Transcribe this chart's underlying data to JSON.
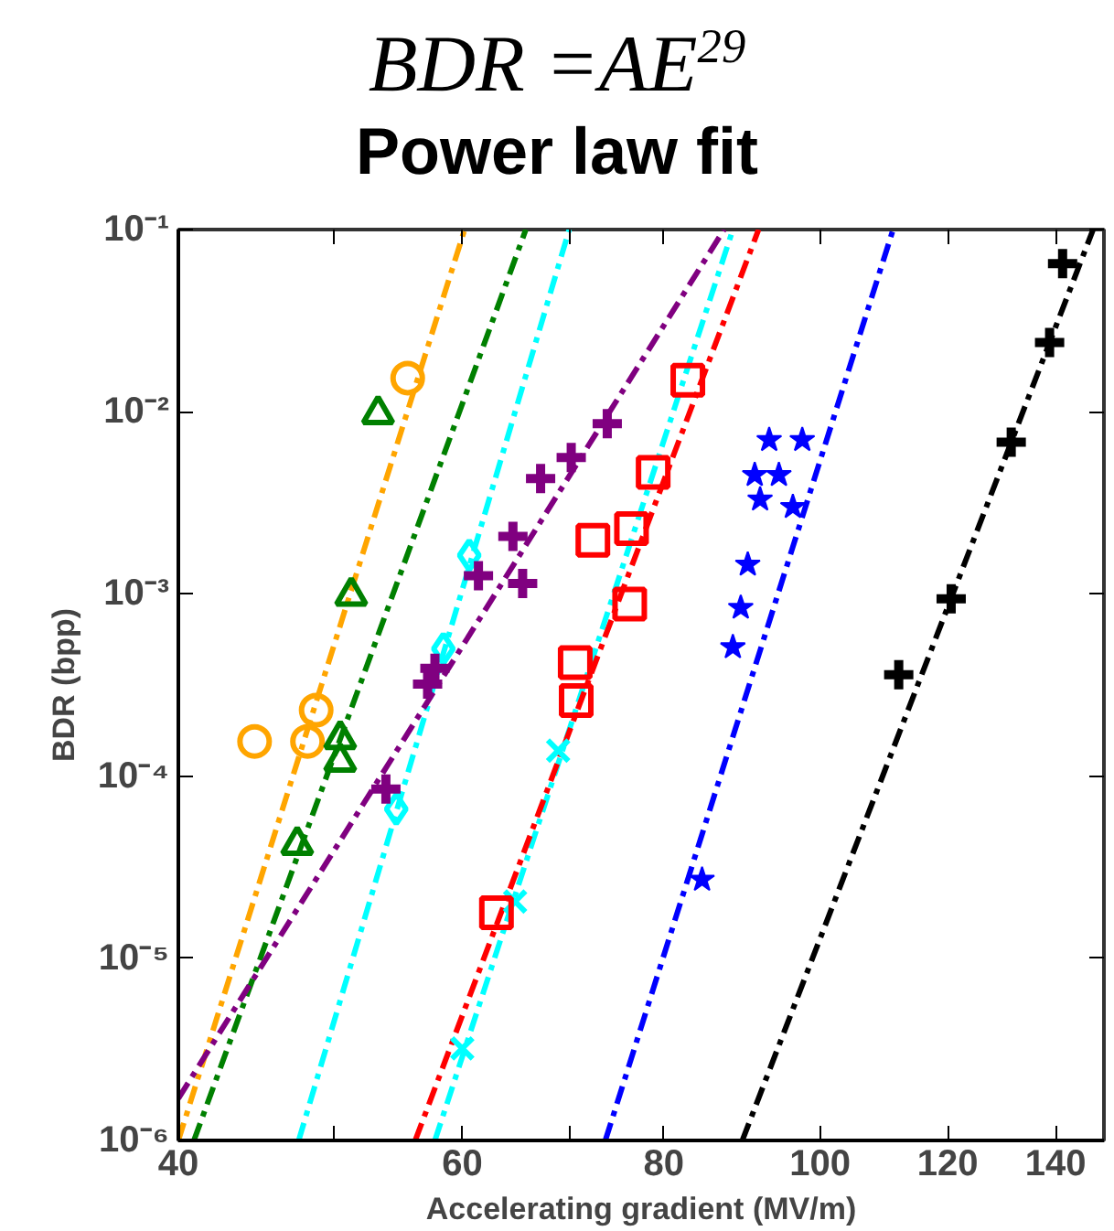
{
  "chart_data": {
    "type": "scatter",
    "title": "BDR =AE$^{29}$",
    "subtitle": "Power law fit",
    "xlabel": "Accelerating gradient (MV/m)",
    "ylabel": "BDR (bpp)",
    "log": "xy",
    "grid": false,
    "xlim": [
      40,
      150
    ],
    "ylim": [
      1e-06,
      0.1
    ],
    "xticks": [
      40,
      {
        "value": 50,
        "label": null
      },
      60,
      {
        "value": 70,
        "label": null
      },
      80,
      100,
      120,
      140
    ],
    "yticks": [
      {
        "value": 1e-06,
        "label": "10⁻⁶"
      },
      {
        "value": 1e-05,
        "label": "10⁻⁵"
      },
      {
        "value": 0.0001,
        "label": "10⁻⁴"
      },
      {
        "value": 0.001,
        "label": "10⁻³"
      },
      {
        "value": 0.01,
        "label": "10⁻²"
      },
      {
        "value": 0.1,
        "label": "10⁻¹"
      }
    ],
    "series": [
      {
        "type": "line",
        "color": "#ffa500",
        "marker": "none",
        "line_style": "dashed",
        "x": [
          40,
          60.2
        ],
        "values": [
          1e-06,
          0.1
        ]
      },
      {
        "type": "line",
        "color": "#008000",
        "marker": "none",
        "line_style": "dashed",
        "x": [
          40.9,
          65.7
        ],
        "values": [
          1e-06,
          0.1
        ]
      },
      {
        "type": "line",
        "color": "#00ffff",
        "marker": "none",
        "line_style": "dashed",
        "x": [
          47.5,
          69.9
        ],
        "values": [
          1e-06,
          0.1
        ]
      },
      {
        "type": "line",
        "color": "#800080",
        "marker": "none",
        "line_style": "dashed",
        "x": [
          40,
          87.2
        ],
        "values": [
          1.7e-06,
          0.1
        ]
      },
      {
        "type": "line",
        "color": "#00ffff",
        "marker": "none",
        "line_style": "dashed",
        "x": [
          57.7,
          88.3
        ],
        "values": [
          1e-06,
          0.1
        ]
      },
      {
        "type": "line",
        "color": "#ff0000",
        "marker": "none",
        "line_style": "dashed",
        "x": [
          56.1,
          91.6
        ],
        "values": [
          1e-06,
          0.1
        ]
      },
      {
        "type": "line",
        "color": "#0000ff",
        "marker": "none",
        "line_style": "dashed",
        "x": [
          73.6,
          111
        ],
        "values": [
          1e-06,
          0.1
        ]
      },
      {
        "type": "line",
        "color": "#000000",
        "marker": "none",
        "line_style": "dashed",
        "x": [
          89.5,
          147.7
        ],
        "values": [
          1e-06,
          0.1
        ]
      },
      {
        "color": "#ffa500",
        "marker": "circle",
        "x": [
          44.6,
          48.1,
          48.7,
          55.5
        ],
        "values": [
          0.000155,
          0.000155,
          0.00023,
          0.0153
        ]
      },
      {
        "color": "#008000",
        "marker": "triangle",
        "x": [
          53.2,
          51.2,
          50.4,
          50.4,
          47.4
        ],
        "values": [
          0.0097,
          0.00098,
          0.00016,
          0.00012,
          4.2e-05
        ]
      },
      {
        "color": "#00ffff",
        "marker": "diamond",
        "x": [
          60.6,
          58.4,
          54.6
        ],
        "values": [
          0.00163,
          0.0005,
          6.6e-05
        ]
      },
      {
        "color": "#800080",
        "marker": "cross",
        "x": [
          73.8,
          70.1,
          67.1,
          64.5,
          65.4,
          61.4,
          57.7,
          57.1,
          53.8
        ],
        "values": [
          0.0086,
          0.0056,
          0.0043,
          0.00207,
          0.00114,
          0.00126,
          0.00039,
          0.00032,
          8.5e-05
        ]
      },
      {
        "color": "#00ffff",
        "marker": "x",
        "x": [
          60.0,
          64.7,
          68.8
        ],
        "values": [
          3.2e-06,
          2.05e-05,
          0.000138
        ]
      },
      {
        "color": "#ff0000",
        "marker": "square",
        "x": [
          82.8,
          78.8,
          76.4,
          72.3,
          76.2,
          70.5,
          70.6,
          63.0
        ],
        "values": [
          0.0149,
          0.00465,
          0.00228,
          0.00197,
          0.00088,
          0.00042,
          0.00026,
          1.78e-05
        ]
      },
      {
        "color": "#0000ff",
        "marker": "star",
        "x": [
          93.0,
          97.5,
          91.1,
          94.3,
          91.8,
          96.2,
          90.2,
          89.3,
          88.3,
          84.5
        ],
        "values": [
          0.007,
          0.007,
          0.0045,
          0.0045,
          0.0033,
          0.003,
          0.00145,
          0.00084,
          0.00051,
          2.7e-05
        ]
      },
      {
        "color": "#000000",
        "marker": "cross",
        "x": [
          141.4,
          138.8,
          131.4,
          120.6,
          111.9
        ],
        "values": [
          0.065,
          0.024,
          0.0068,
          0.00094,
          0.00036
        ]
      }
    ]
  }
}
